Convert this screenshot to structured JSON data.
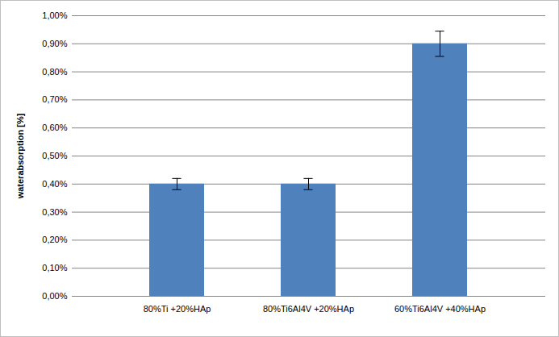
{
  "chart_data": {
    "type": "bar",
    "y_label": "waterabsorption [%]",
    "categories": [
      "80%Ti +20%HAp",
      "80%Ti6Al4V +20%HAp",
      "60%Ti6Al4V +40%HAp"
    ],
    "values": [
      0.4,
      0.4,
      0.9
    ],
    "errors": [
      0.02,
      0.02,
      0.045
    ],
    "color": "#4f81bd",
    "ylim": [
      0,
      1
    ],
    "yticks": [
      {
        "value": 0,
        "label": "0,00%"
      },
      {
        "value": 0.1,
        "label": "0,10%"
      },
      {
        "value": 0.2,
        "label": "0,20%"
      },
      {
        "value": 0.3,
        "label": "0,30%"
      },
      {
        "value": 0.4,
        "label": "0,40%"
      },
      {
        "value": 0.5,
        "label": "0,50%"
      },
      {
        "value": 0.6,
        "label": "0,60%"
      },
      {
        "value": 0.7,
        "label": "0,70%"
      },
      {
        "value": 0.8,
        "label": "0,80%"
      },
      {
        "value": 0.9,
        "label": "0,90%"
      },
      {
        "value": 1,
        "label": "1,00%"
      }
    ],
    "grid": true
  }
}
